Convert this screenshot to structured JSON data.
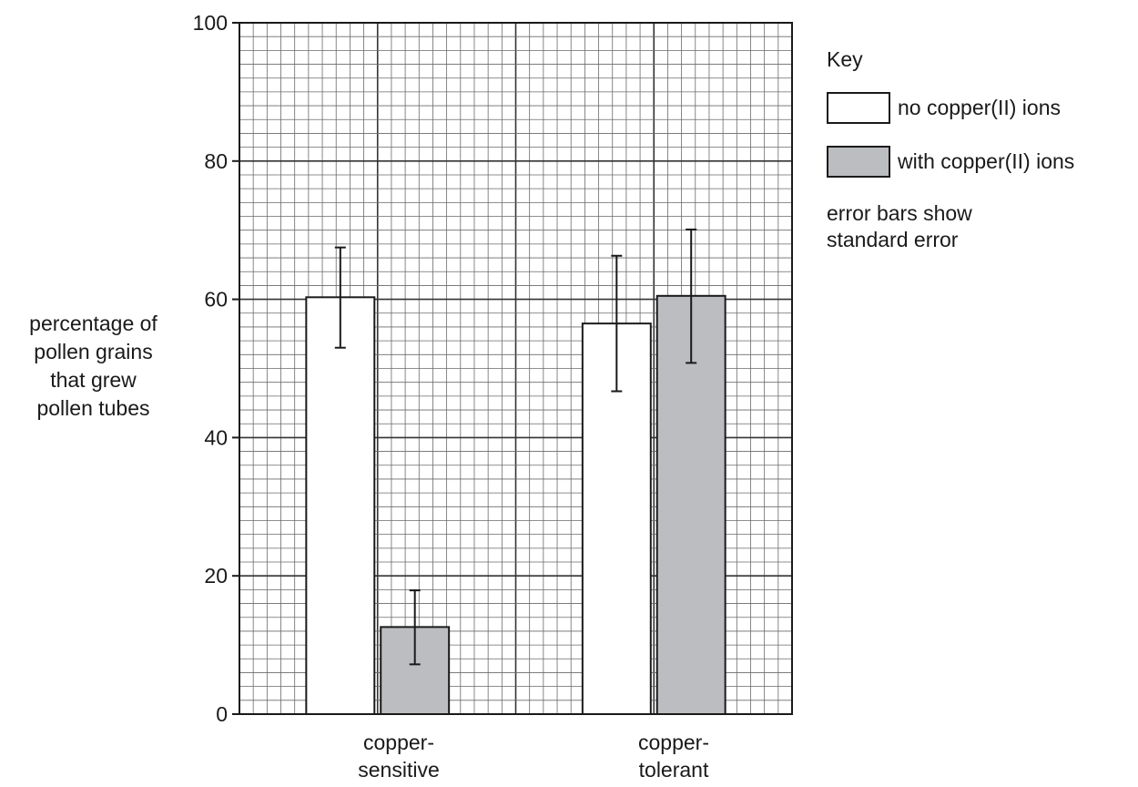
{
  "chart_data": {
    "type": "bar",
    "categories": [
      [
        "copper-",
        "sensitive"
      ],
      [
        "copper-",
        "tolerant"
      ]
    ],
    "series": [
      {
        "name": "no copper(II) ions",
        "color": "#ffffff",
        "values": [
          60.3,
          56.5
        ],
        "error": [
          [
            53.0,
            67.5
          ],
          [
            46.7,
            66.3
          ]
        ]
      },
      {
        "name": "with copper(II) ions",
        "color": "#bcbdc0",
        "values": [
          12.6,
          60.5
        ],
        "error": [
          [
            7.2,
            17.9
          ],
          [
            50.8,
            70.1
          ]
        ]
      }
    ],
    "ylabel": [
      "percentage of",
      "pollen grains",
      "that grew",
      "pollen tubes"
    ],
    "xlabel": "",
    "ylim": [
      0,
      100
    ],
    "yticks": [
      "0",
      "20",
      "40",
      "60",
      "80",
      "100"
    ],
    "legend": {
      "title": "Key",
      "placement": "right",
      "note": [
        "error bars show",
        "standard error"
      ]
    },
    "grid": true
  }
}
